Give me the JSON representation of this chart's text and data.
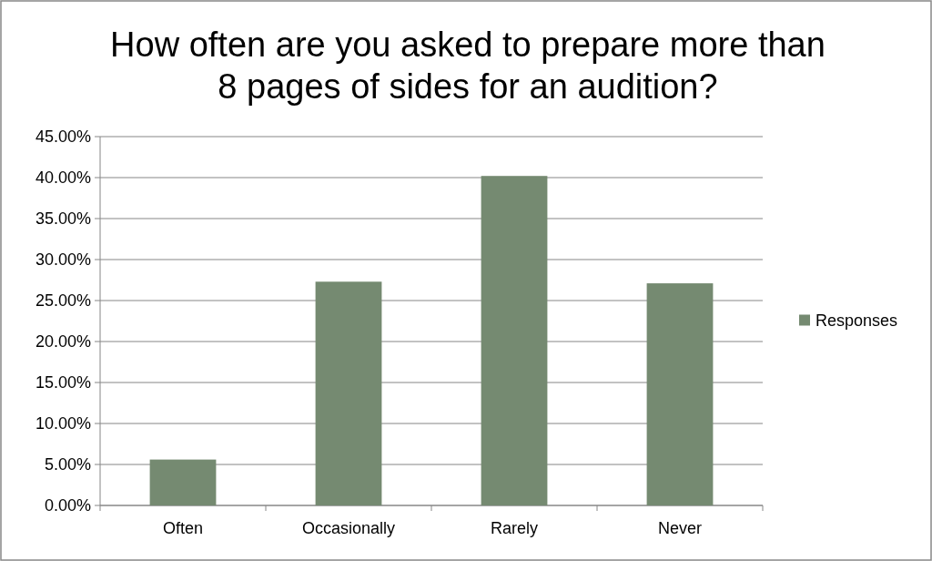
{
  "chart_data": {
    "type": "bar",
    "title": "How often are you asked to prepare more than 8 pages of sides for an audition?",
    "categories": [
      "Often",
      "Occasionally",
      "Rarely",
      "Never"
    ],
    "series": [
      {
        "name": "Responses",
        "color": "#758a71",
        "values": [
          5.6,
          27.3,
          40.2,
          27.1
        ]
      }
    ],
    "ylim": [
      0,
      45
    ],
    "yticks": [
      {
        "value": 0,
        "label": "0.00%"
      },
      {
        "value": 5,
        "label": "5.00%"
      },
      {
        "value": 10,
        "label": "10.00%"
      },
      {
        "value": 15,
        "label": "15.00%"
      },
      {
        "value": 20,
        "label": "20.00%"
      },
      {
        "value": 25,
        "label": "25.00%"
      },
      {
        "value": 30,
        "label": "30.00%"
      },
      {
        "value": 35,
        "label": "35.00%"
      },
      {
        "value": 40,
        "label": "40.00%"
      },
      {
        "value": 45,
        "label": "45.00%"
      }
    ],
    "grid": "y",
    "legend": "right"
  }
}
